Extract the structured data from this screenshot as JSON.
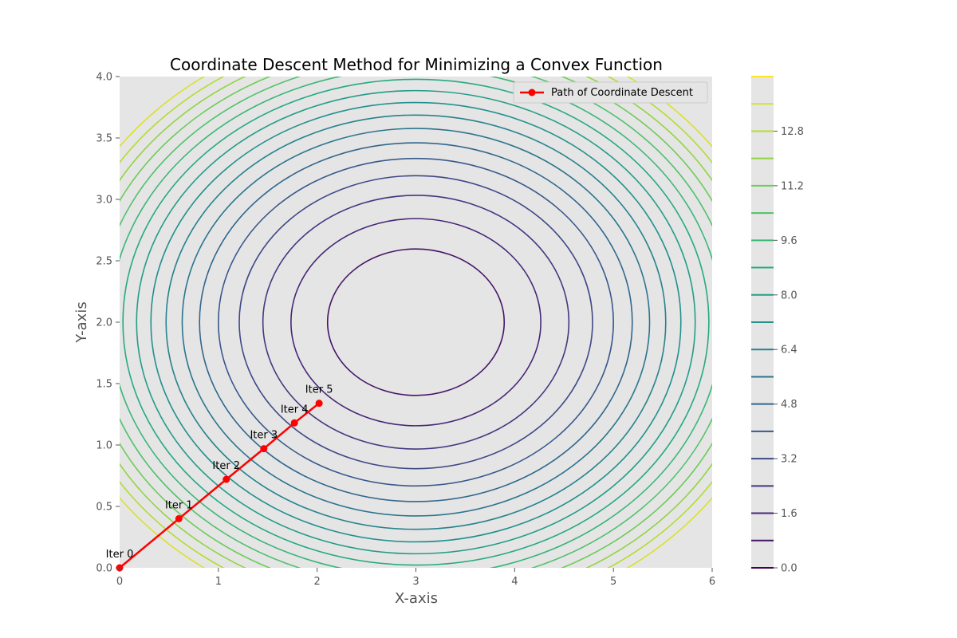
{
  "chart_data": {
    "type": "line",
    "title": "Coordinate Descent Method for Minimizing a Convex Function",
    "xlabel": "X-axis",
    "ylabel": "Y-axis",
    "xlim": [
      0,
      6
    ],
    "ylim": [
      0,
      4
    ],
    "xticks": [
      "0",
      "1",
      "2",
      "3",
      "4",
      "5",
      "6"
    ],
    "yticks": [
      "0.0",
      "0.5",
      "1.0",
      "1.5",
      "2.0",
      "2.5",
      "3.0",
      "3.5",
      "4.0"
    ],
    "grid": false,
    "background": "#e5e5e5",
    "legend": {
      "position": "top-right",
      "entries": [
        "Path of Coordinate Descent"
      ]
    },
    "series": [
      {
        "name": "Path of Coordinate Descent",
        "color": "#ff0000",
        "marker": "circle",
        "x": [
          0.0,
          0.6,
          1.08,
          1.46,
          1.77,
          2.02
        ],
        "y": [
          0.0,
          0.4,
          0.72,
          0.97,
          1.18,
          1.34
        ]
      }
    ],
    "annotations": [
      "Iter 0",
      "Iter 1",
      "Iter 2",
      "Iter 3",
      "Iter 4",
      "Iter 5"
    ],
    "contour": {
      "center": [
        3,
        2
      ],
      "function_note": "(x-3)^2 + 2.25*(y-2)^2",
      "levels": [
        0.8,
        1.6,
        2.4,
        3.2,
        4.0,
        4.8,
        5.6,
        6.4,
        7.2,
        8.0,
        8.8,
        9.6,
        10.4,
        11.2,
        12.0,
        12.8,
        13.6
      ],
      "colormap": "viridis"
    },
    "colorbar": {
      "ticks": [
        "0.0",
        "1.6",
        "3.2",
        "4.8",
        "6.4",
        "8.0",
        "9.6",
        "11.2",
        "12.8"
      ],
      "vmin": 0,
      "vmax": 14.4
    }
  }
}
